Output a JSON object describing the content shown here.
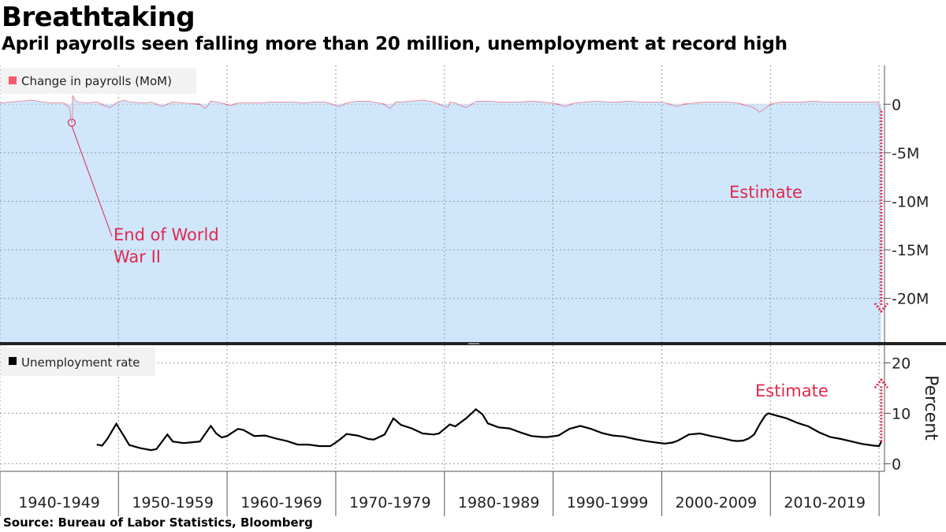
{
  "title": "Breathtaking",
  "subtitle": "April payrolls seen falling more than 20 million, unemployment at record high",
  "source": "Source: Bureau of Labor Statistics, Bloomberg",
  "colors": {
    "payrolls_line": "#f25b6e",
    "payrolls_fill": "#cfe6fb",
    "unemployment_line": "#000000",
    "annotation": "#e0284c",
    "grid": "#9a9a9a"
  },
  "chart_data": [
    {
      "type": "area",
      "legend": "Change in payrolls (MoM)",
      "legend_position": "top-left",
      "x_unit": "year",
      "ylim": [
        -24.5,
        4
      ],
      "y_ticks": [
        {
          "value": 0,
          "label": "0"
        },
        {
          "value": -5,
          "label": "-5M"
        },
        {
          "value": -10,
          "label": "-10M"
        },
        {
          "value": -15,
          "label": "-15M"
        },
        {
          "value": -20,
          "label": "-20M"
        }
      ],
      "series": [
        {
          "name": "Change in payrolls (MoM)",
          "x": [
            1939.1,
            1941,
            1942,
            1943,
            1944,
            1945.0,
            1945.5,
            1945.7,
            1945.8,
            1946.0,
            1946.3,
            1947,
            1948,
            1949.2,
            1949.8,
            1950.5,
            1951,
            1952.5,
            1953,
            1954,
            1955,
            1956,
            1957.5,
            1958.0,
            1958.5,
            1959.5,
            1960.3,
            1961.0,
            1962,
            1963,
            1964,
            1965,
            1966,
            1967,
            1968,
            1969,
            1970.3,
            1971,
            1972,
            1973,
            1974.5,
            1975.0,
            1975.5,
            1976,
            1977,
            1978,
            1979,
            1980.3,
            1980.5,
            1981,
            1982.0,
            1983,
            1984,
            1985,
            1986,
            1987,
            1988,
            1989,
            1990.5,
            1991.0,
            1992,
            1993,
            1994,
            1995,
            1996,
            1997,
            1998,
            1999,
            2000,
            2001.5,
            2002,
            2003,
            2004,
            2005,
            2006,
            2007,
            2008.2,
            2008.7,
            2009.0,
            2009.5,
            2010,
            2011,
            2012,
            2013,
            2014,
            2015,
            2016,
            2017,
            2018,
            2019,
            2019.9,
            2020.2
          ],
          "values": [
            0.1,
            0.3,
            0.4,
            0.2,
            0.1,
            0.1,
            -0.3,
            -1.9,
            0.8,
            0.4,
            0.2,
            0.1,
            0.2,
            -0.3,
            0.1,
            0.4,
            0.2,
            0.1,
            0.2,
            -0.2,
            0.2,
            0.1,
            0.0,
            -0.4,
            0.3,
            0.1,
            -0.1,
            0.1,
            0.1,
            0.1,
            0.2,
            0.2,
            0.2,
            0.1,
            0.2,
            0.2,
            -0.2,
            0.1,
            0.3,
            0.3,
            0.0,
            -0.4,
            0.2,
            0.2,
            0.3,
            0.4,
            0.2,
            -0.3,
            0.2,
            0.1,
            -0.3,
            0.3,
            0.3,
            0.2,
            0.2,
            0.2,
            0.3,
            0.2,
            0.0,
            -0.2,
            0.1,
            0.2,
            0.3,
            0.2,
            0.2,
            0.3,
            0.2,
            0.2,
            0.2,
            -0.2,
            0.0,
            0.1,
            0.2,
            0.2,
            0.2,
            0.1,
            -0.2,
            -0.5,
            -0.8,
            -0.4,
            0.0,
            0.2,
            0.2,
            0.2,
            0.3,
            0.2,
            0.2,
            0.2,
            0.2,
            0.2,
            0.2,
            -0.7
          ]
        }
      ],
      "estimate": {
        "label": "Estimate",
        "from": -0.7,
        "to": -21.0
      },
      "annotation": {
        "label_line1": "End of World",
        "label_line2": "War II",
        "x": 1945.7,
        "y": -1.9
      }
    },
    {
      "type": "line",
      "legend": "Unemployment rate",
      "legend_position": "top-left",
      "ylabel": "Percent",
      "x_unit": "year",
      "ylim": [
        -1.5,
        23.5
      ],
      "y_ticks": [
        {
          "value": 0,
          "label": "0"
        },
        {
          "value": 10,
          "label": "10"
        },
        {
          "value": 20,
          "label": "20"
        }
      ],
      "series": [
        {
          "name": "Unemployment rate",
          "x": [
            1948.0,
            1948.5,
            1949.0,
            1949.8,
            1950.5,
            1951.0,
            1952.0,
            1953.0,
            1953.5,
            1954.5,
            1955.0,
            1956.0,
            1957.0,
            1957.5,
            1958.5,
            1959.0,
            1959.5,
            1960.0,
            1961.0,
            1961.5,
            1962.5,
            1963.5,
            1964.5,
            1965.5,
            1966.5,
            1967.5,
            1968.5,
            1969.5,
            1970.0,
            1970.5,
            1971.0,
            1972.0,
            1973.0,
            1973.5,
            1974.5,
            1975.3,
            1976.0,
            1977.0,
            1978.0,
            1979.0,
            1979.5,
            1980.5,
            1981.0,
            1982.0,
            1982.9,
            1983.5,
            1984.0,
            1985.0,
            1986.0,
            1987.0,
            1988.0,
            1989.0,
            1989.5,
            1990.5,
            1991.5,
            1992.5,
            1993.5,
            1994.5,
            1995.5,
            1996.5,
            1997.5,
            1998.5,
            1999.5,
            2000.3,
            2001.0,
            2001.5,
            2002.5,
            2003.5,
            2004.5,
            2005.5,
            2006.5,
            2007.0,
            2007.5,
            2008.0,
            2008.5,
            2009.0,
            2009.5,
            2009.8,
            2010.5,
            2011.5,
            2012.5,
            2013.5,
            2014.5,
            2015.5,
            2016.5,
            2017.5,
            2018.5,
            2019.5,
            2020.0,
            2020.2
          ],
          "values": [
            3.8,
            3.6,
            5.0,
            7.9,
            5.5,
            3.7,
            3.1,
            2.7,
            2.9,
            5.8,
            4.4,
            4.1,
            4.3,
            4.4,
            7.5,
            6.0,
            5.2,
            5.5,
            6.9,
            6.7,
            5.5,
            5.6,
            5.0,
            4.5,
            3.8,
            3.8,
            3.5,
            3.5,
            4.2,
            5.0,
            5.9,
            5.6,
            4.9,
            4.8,
            5.8,
            9.0,
            7.7,
            7.0,
            6.0,
            5.8,
            6.0,
            7.8,
            7.4,
            9.0,
            10.8,
            9.8,
            8.0,
            7.2,
            7.0,
            6.2,
            5.5,
            5.3,
            5.3,
            5.6,
            6.9,
            7.5,
            6.9,
            6.1,
            5.6,
            5.4,
            4.9,
            4.5,
            4.2,
            4.0,
            4.2,
            4.6,
            5.8,
            6.0,
            5.5,
            5.1,
            4.6,
            4.5,
            4.6,
            5.0,
            5.8,
            7.8,
            9.5,
            10.0,
            9.6,
            9.0,
            8.1,
            7.4,
            6.2,
            5.3,
            4.9,
            4.4,
            3.9,
            3.6,
            3.5,
            4.4
          ]
        }
      ],
      "estimate": {
        "label": "Estimate",
        "from": 4.4,
        "to": 16.0
      }
    }
  ],
  "x_axis": {
    "categories": [
      "1940-1949",
      "1950-1959",
      "1960-1969",
      "1970-1979",
      "1980-1989",
      "1990-1999",
      "2000-2009",
      "2010-2019"
    ],
    "domain": [
      1939.1,
      2020.5
    ]
  }
}
